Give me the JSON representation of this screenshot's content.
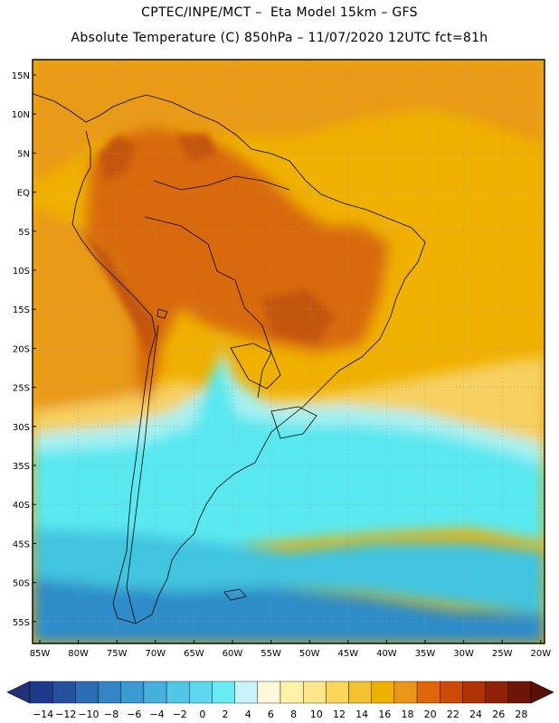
{
  "header": {
    "line1": "CPTEC/INPE/MCT –  Eta Model 15km – GFS",
    "line2": "Absolute Temperature (C) 850hPa – 11/07/2020 12UTC fct=81h"
  },
  "map": {
    "lat_labels": [
      "15N",
      "10N",
      "5N",
      "EQ",
      "5S",
      "10S",
      "15S",
      "20S",
      "25S",
      "30S",
      "35S",
      "40S",
      "45S",
      "50S",
      "55S"
    ],
    "lon_labels": [
      "85W",
      "80W",
      "75W",
      "70W",
      "65W",
      "60W",
      "55W",
      "50W",
      "45W",
      "40W",
      "35W",
      "30W",
      "25W",
      "20W"
    ],
    "gridlines": "dotted",
    "colors": {
      "ocean_warm": "#f0b000",
      "tropics_warm": "#e99a18",
      "land_hot": "#d86a10",
      "subtropical": "#f6d060",
      "cold_front": "#a9f0f0",
      "cold": "#5ae8f0",
      "colder": "#40c4e0",
      "coldest": "#2e8cc8"
    }
  },
  "colorbar": {
    "tick_labels": [
      "-14",
      "-12",
      "-10",
      "-8",
      "-6",
      "-4",
      "-2",
      "0",
      "2",
      "4",
      "6",
      "8",
      "10",
      "12",
      "14",
      "16",
      "18",
      "20",
      "22",
      "24",
      "26",
      "28"
    ],
    "colors": [
      "#1e3a8a",
      "#2552a0",
      "#2b6cb5",
      "#3384c4",
      "#3b9ad0",
      "#46b0dc",
      "#52c6e6",
      "#5ed8ee",
      "#68ecf4",
      "#c8f4f8",
      "#fdf6d8",
      "#fff2a8",
      "#fde68a",
      "#f9d65a",
      "#f3c230",
      "#f0b000",
      "#ea9418",
      "#e0660c",
      "#cc4a06",
      "#b03304",
      "#8f2204",
      "#6e1606"
    ],
    "left_extend_color": "#24307a",
    "right_extend_color": "#5a1006"
  }
}
